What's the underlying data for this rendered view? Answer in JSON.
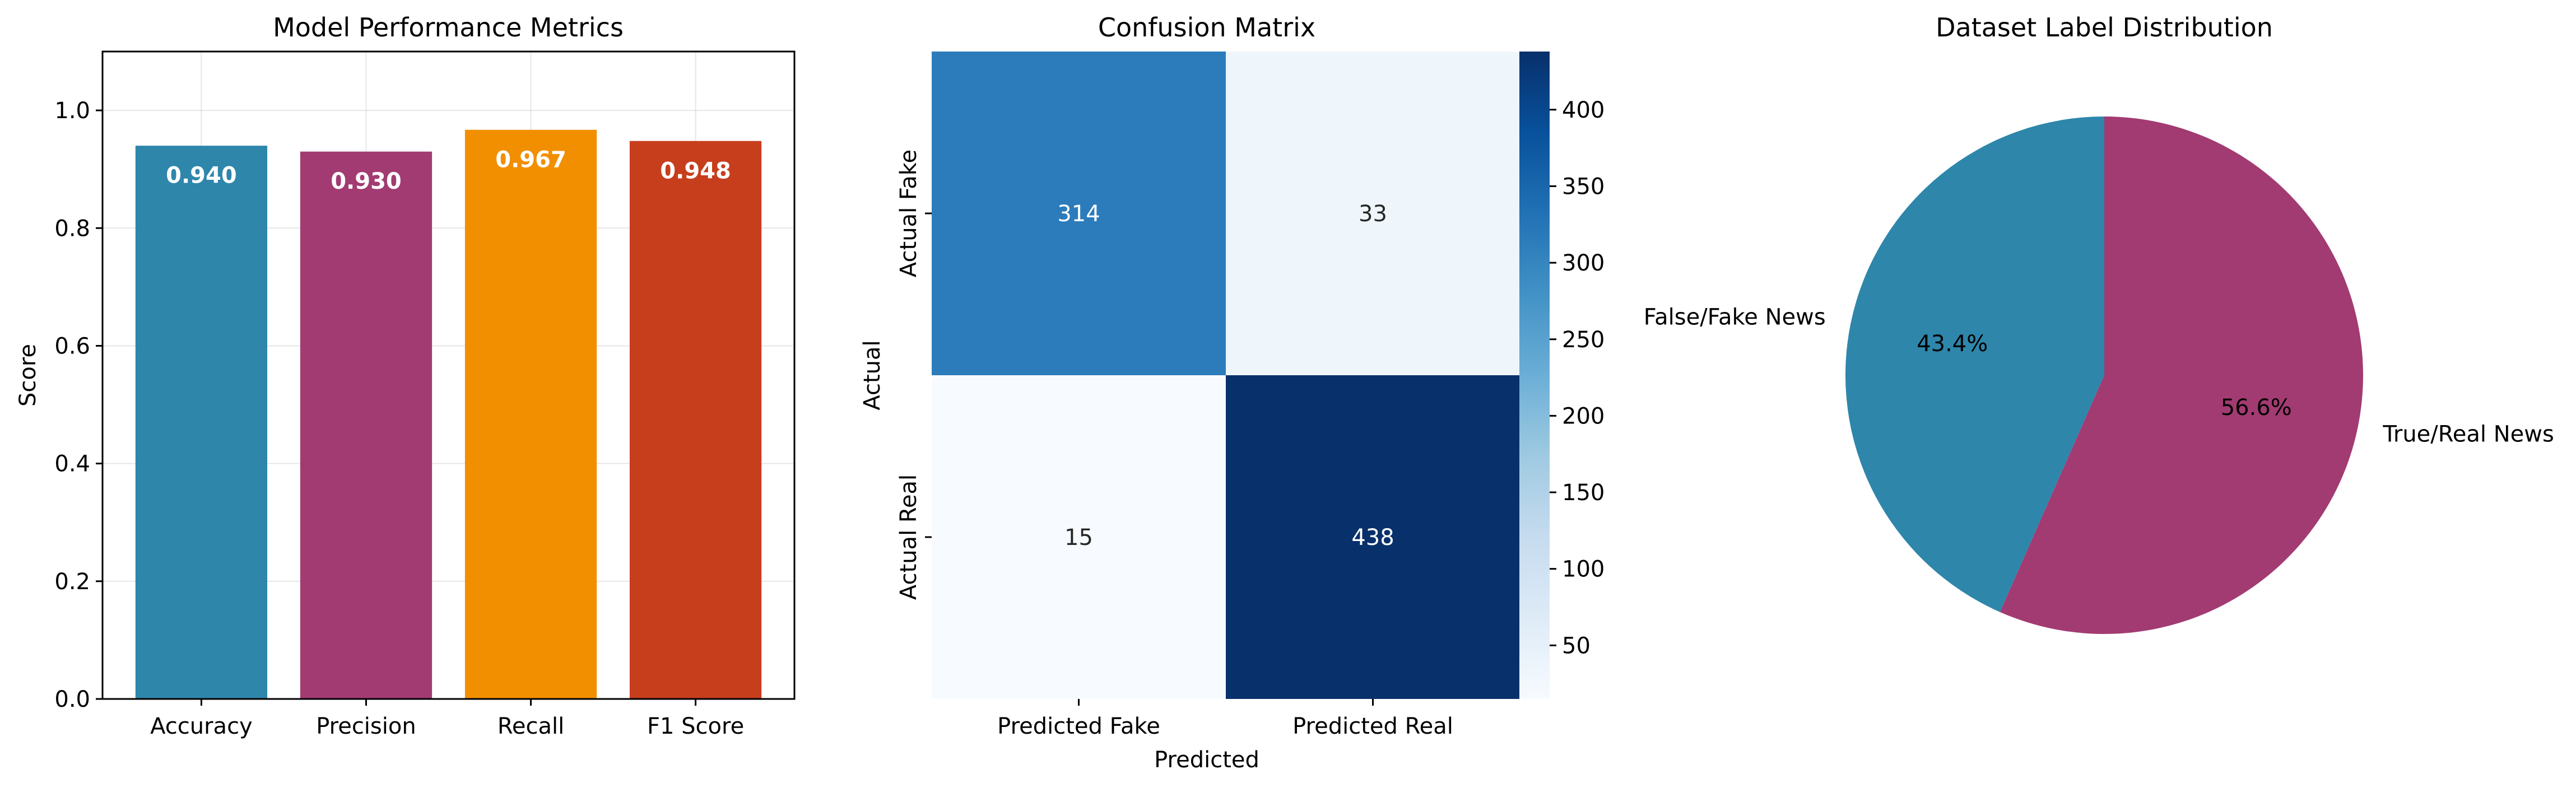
{
  "chart_data": [
    {
      "type": "bar",
      "title": "Model Performance Metrics",
      "xlabel": "",
      "ylabel": "Score",
      "categories": [
        "Accuracy",
        "Precision",
        "Recall",
        "F1 Score"
      ],
      "values": [
        0.94,
        0.93,
        0.967,
        0.948
      ],
      "value_labels": [
        "0.940",
        "0.930",
        "0.967",
        "0.948"
      ],
      "colors": [
        "#2e86ab",
        "#a23b72",
        "#f18f01",
        "#c73e1d"
      ],
      "ylim": [
        0,
        1.1
      ],
      "yticks": [
        0.0,
        0.2,
        0.4,
        0.6,
        0.8,
        1.0
      ],
      "ytick_labels": [
        "0.0",
        "0.2",
        "0.4",
        "0.6",
        "0.8",
        "1.0"
      ],
      "grid": true
    },
    {
      "type": "heatmap",
      "title": "Confusion Matrix",
      "xlabel": "Predicted",
      "ylabel": "Actual",
      "x_categories": [
        "Predicted Fake",
        "Predicted Real"
      ],
      "y_categories": [
        "Actual Fake",
        "Actual Real"
      ],
      "values": [
        [
          314,
          33
        ],
        [
          15,
          438
        ]
      ],
      "colormap": "Blues",
      "colorbar_range": [
        15,
        438
      ],
      "colorbar_ticks": [
        50,
        100,
        150,
        200,
        250,
        300,
        350,
        400
      ]
    },
    {
      "type": "pie",
      "title": "Dataset Label Distribution",
      "labels": [
        "False/Fake News",
        "True/Real News"
      ],
      "values": [
        43.4,
        56.6
      ],
      "value_labels": [
        "43.4%",
        "56.6%"
      ],
      "colors": [
        "#2e86ab",
        "#a23b72"
      ],
      "start_angle": 90
    }
  ]
}
